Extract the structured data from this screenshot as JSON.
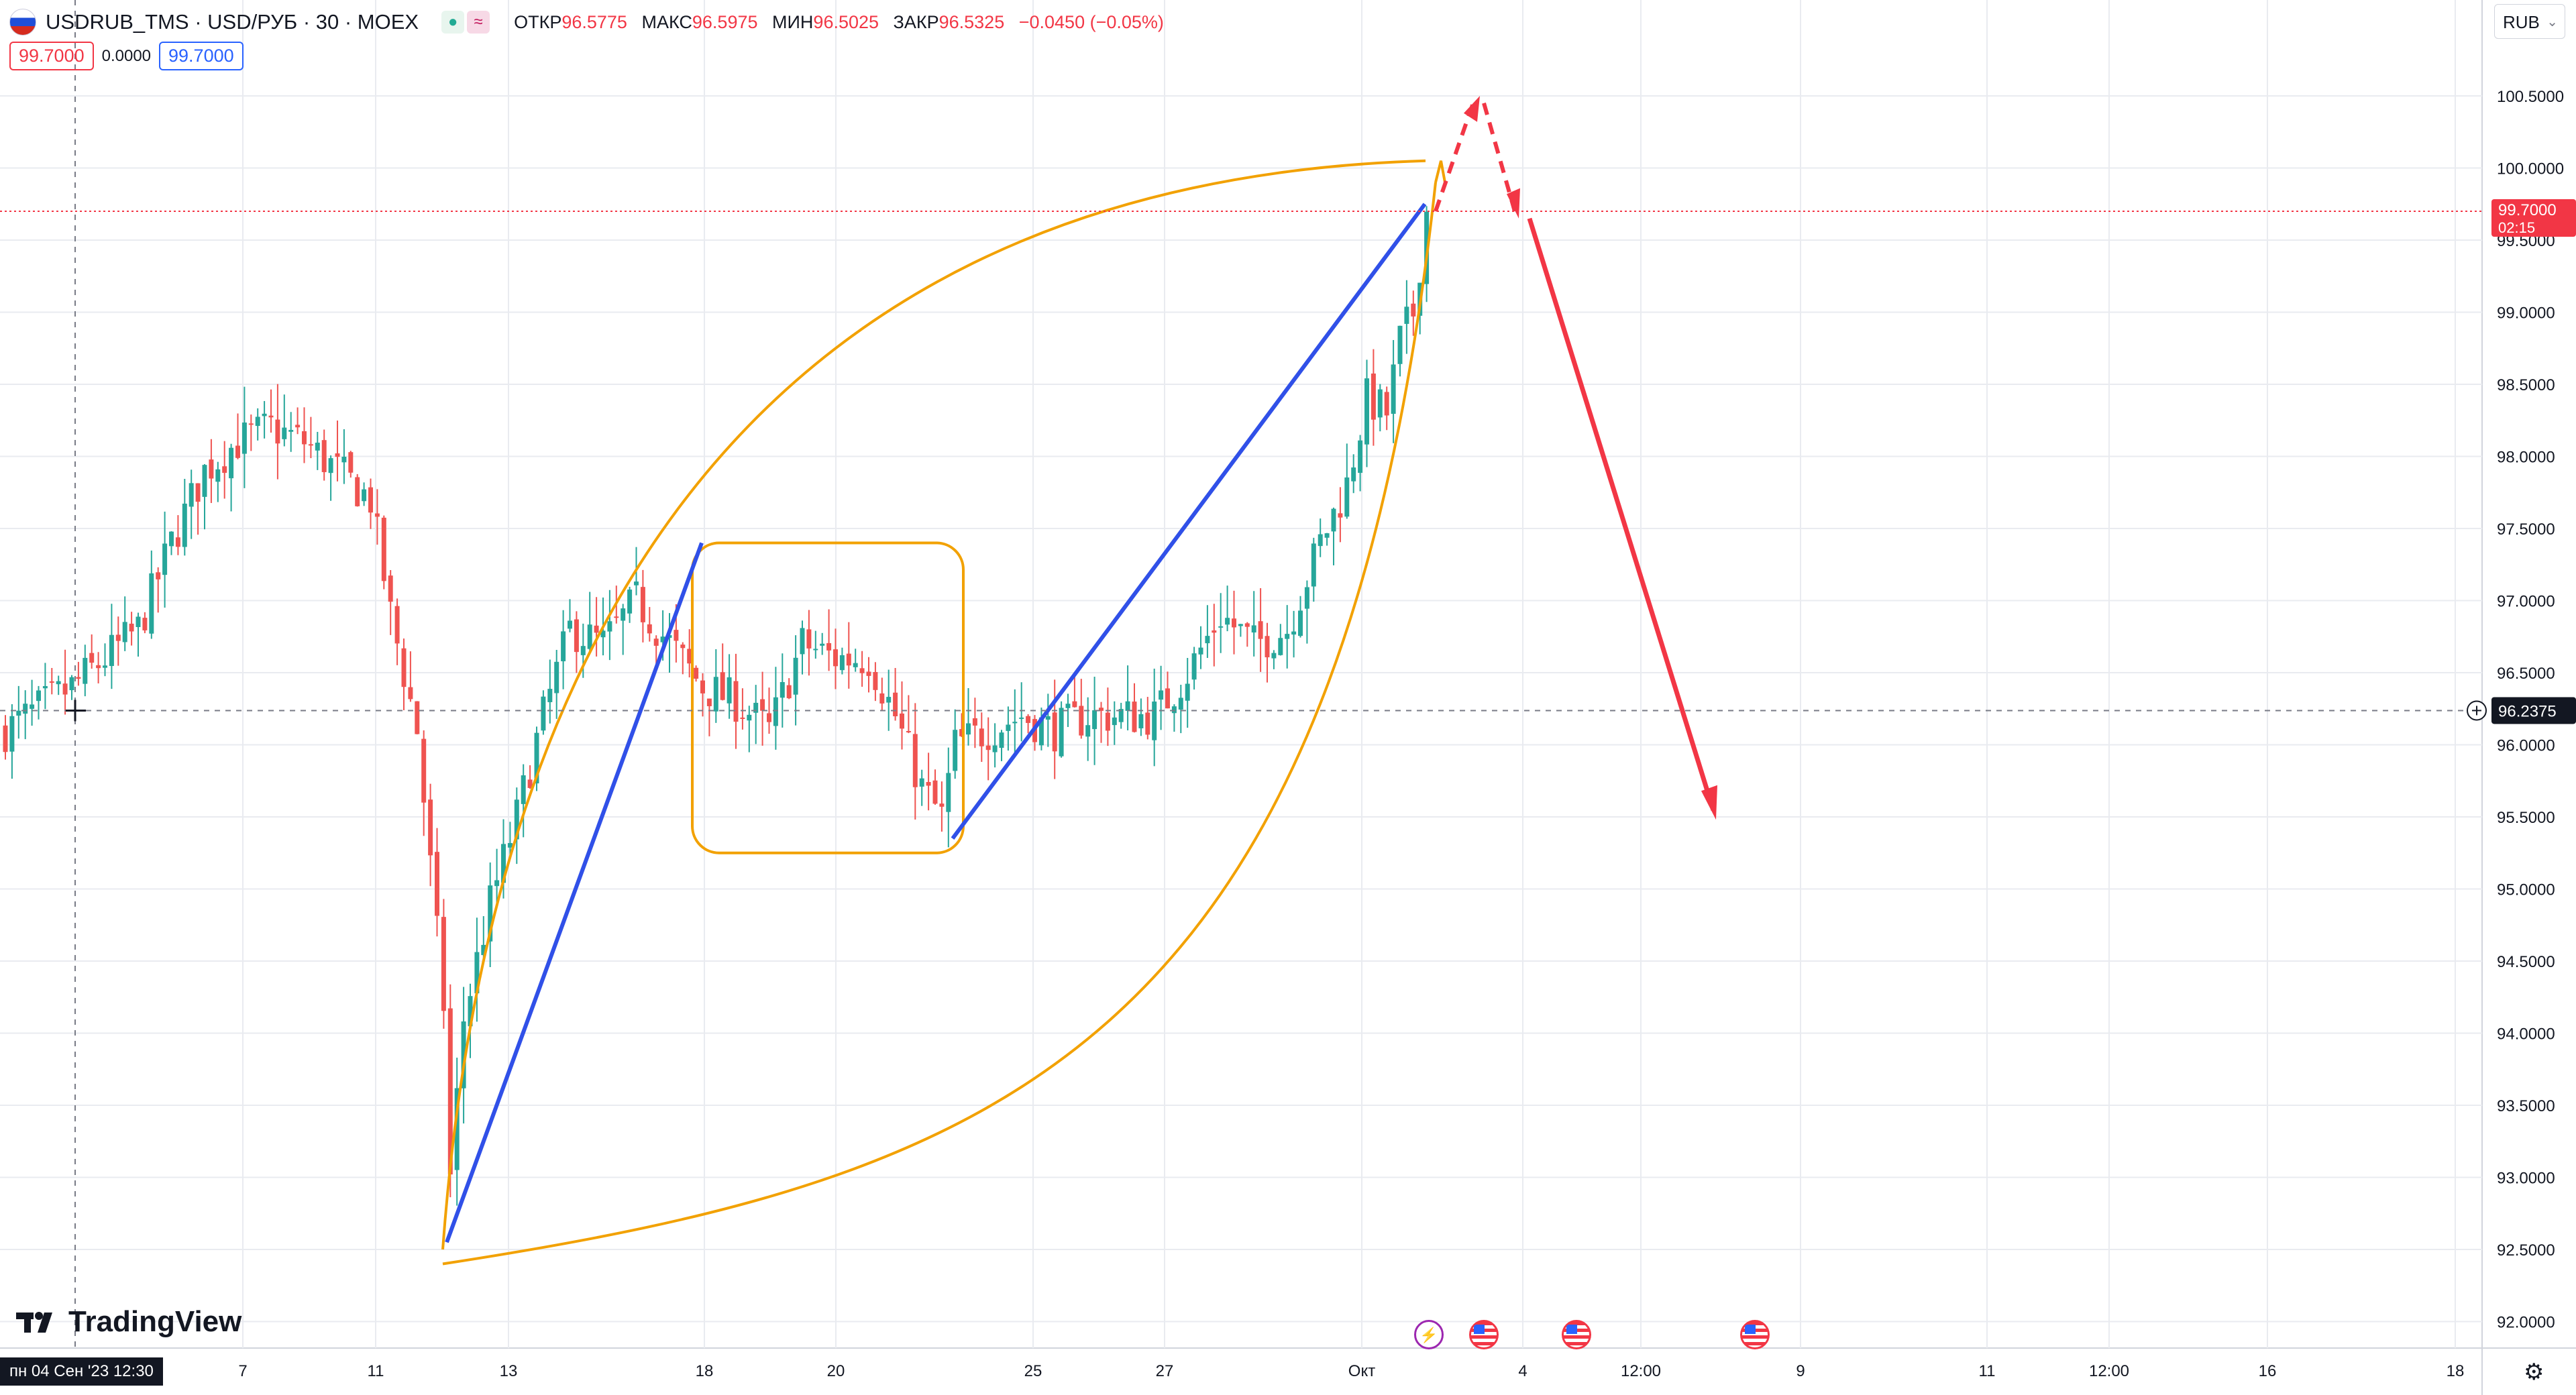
{
  "header": {
    "symbol": "USDRUB_TMS · USD/РУБ · 30 · MOEX",
    "mode_icons": [
      "market-open-icon",
      "approx-icon"
    ],
    "ohlc": {
      "open_label": "ОТКР",
      "open": "96.5775",
      "high_label": "МАКС",
      "high": "96.5975",
      "low_label": "МИН",
      "low": "96.5025",
      "close_label": "ЗАКР",
      "close": "96.5325",
      "change": "−0.0450 (−0.05%)"
    },
    "sell_price": "99.7000",
    "spread": "0.0000",
    "buy_price": "99.7000"
  },
  "currency": "RUB",
  "logo_text": "TradingView",
  "crosshair_date": "пн 04 Сен '23   12:30",
  "price_axis_labels": [
    "100.5000",
    "100.0000",
    "99.5000",
    "99.0000",
    "98.5000",
    "98.0000",
    "97.5000",
    "97.0000",
    "96.5000",
    "96.0000",
    "95.5000",
    "95.0000",
    "94.5000",
    "94.0000",
    "93.5000",
    "93.0000",
    "92.5000",
    "92.0000"
  ],
  "last_price_label": "99.7000",
  "countdown": "02:15",
  "crosshair_price": "96.2375",
  "time_axis_labels": [
    "7",
    "11",
    "13",
    "18",
    "20",
    "25",
    "27",
    "Окт",
    "4",
    "12:00",
    "9",
    "11",
    "12:00",
    "16",
    "18"
  ],
  "colors": {
    "up": "#26a69a",
    "down": "#ef5350",
    "grid": "#e9ebf0",
    "blue_line": "#3050e8",
    "orange": "#f2a100",
    "red_arrow": "#f23645"
  },
  "events": [
    "bolt-event-icon",
    "us-flag-event-icon",
    "us-flag-event-icon",
    "us-flag-event-icon"
  ],
  "chart_data": {
    "type": "candlestick",
    "title": "USDRUB_TMS · USD/РУБ · 30 · MOEX",
    "ylim": [
      91.8,
      101.0
    ],
    "close_path": [
      [
        0,
        96.1
      ],
      [
        10,
        96.4
      ],
      [
        20,
        96.8
      ],
      [
        25,
        97.4
      ],
      [
        30,
        97.9
      ],
      [
        35,
        98.1
      ],
      [
        40,
        98.2
      ],
      [
        45,
        98.1
      ],
      [
        50,
        97.9
      ],
      [
        55,
        97.7
      ],
      [
        58,
        96.9
      ],
      [
        62,
        96.1
      ],
      [
        66,
        94.2
      ],
      [
        67,
        93.0
      ],
      [
        69,
        94.1
      ],
      [
        73,
        94.9
      ],
      [
        77,
        95.5
      ],
      [
        81,
        96.2
      ],
      [
        85,
        96.8
      ],
      [
        90,
        96.7
      ],
      [
        95,
        97.0
      ],
      [
        100,
        96.7
      ],
      [
        105,
        96.4
      ],
      [
        110,
        96.3
      ],
      [
        115,
        96.1
      ],
      [
        120,
        96.7
      ],
      [
        125,
        96.6
      ],
      [
        130,
        96.6
      ],
      [
        134,
        96.2
      ],
      [
        138,
        95.7
      ],
      [
        141,
        95.5
      ],
      [
        143,
        96.0
      ],
      [
        148,
        96.1
      ],
      [
        153,
        96.2
      ],
      [
        158,
        96.1
      ],
      [
        163,
        96.2
      ],
      [
        168,
        96.2
      ],
      [
        173,
        96.2
      ],
      [
        178,
        96.5
      ],
      [
        183,
        96.9
      ],
      [
        188,
        96.7
      ],
      [
        193,
        96.8
      ],
      [
        198,
        97.4
      ],
      [
        202,
        97.8
      ],
      [
        205,
        98.4
      ],
      [
        208,
        98.3
      ],
      [
        210,
        98.8
      ],
      [
        212,
        99.0
      ],
      [
        214,
        99.7
      ]
    ],
    "wick_spread": 0.25,
    "annotations": [
      {
        "name": "blue-trend-line-1",
        "type": "line",
        "points": [
          [
            92.55
          ],
          [
            97.4
          ]
        ]
      },
      {
        "name": "blue-trend-line-2",
        "type": "line",
        "points": [
          [
            95.35
          ],
          [
            99.75
          ]
        ]
      },
      {
        "name": "orange-range-box",
        "type": "rect",
        "y": [
          95.25,
          97.4
        ]
      },
      {
        "name": "red-dashed-up",
        "type": "dashed-arrow",
        "y": [
          99.7,
          100.45
        ]
      },
      {
        "name": "red-dashed-down",
        "type": "dashed-arrow",
        "y": [
          100.45,
          99.7
        ]
      },
      {
        "name": "red-forecast-arrow",
        "type": "arrow",
        "y": [
          99.65,
          95.5
        ]
      }
    ]
  }
}
